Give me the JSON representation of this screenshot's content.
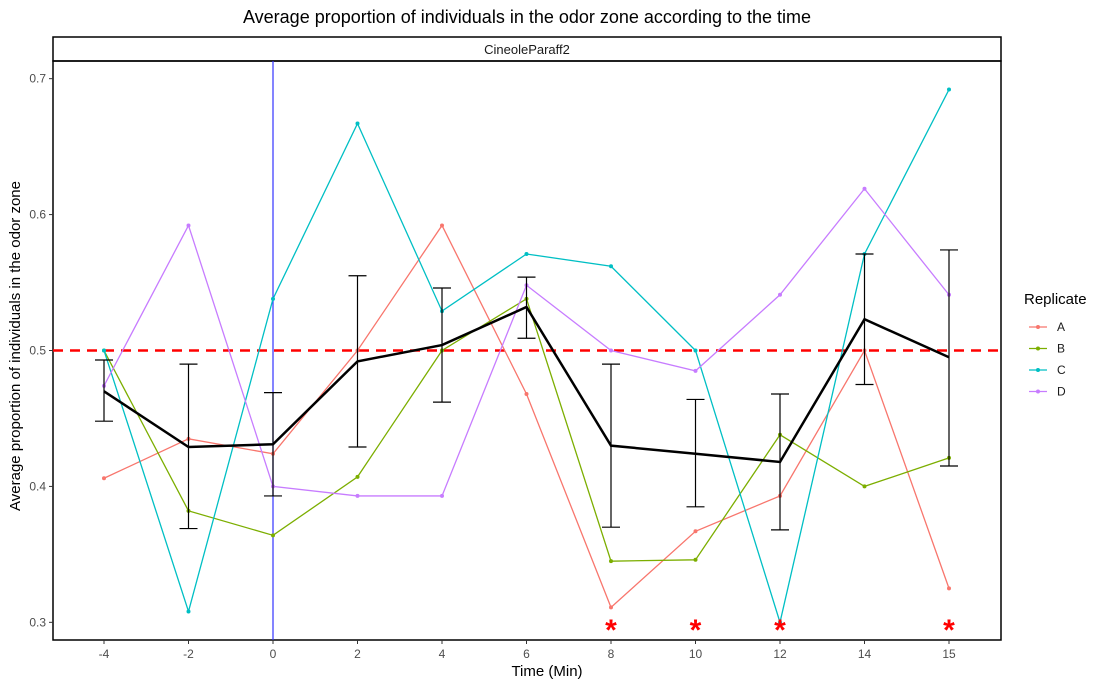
{
  "chart_data": {
    "type": "line",
    "title": "Average proportion of individuals in the odor zone according to the time",
    "facet_label": "CineoleParaff2",
    "xlabel": "Time (Min)",
    "ylabel": "Average proportion of individuals in the odor zone",
    "categories": [
      "-4",
      "-2",
      "0",
      "2",
      "4",
      "6",
      "8",
      "10",
      "12",
      "14",
      "15"
    ],
    "ylim": [
      0.287,
      0.713
    ],
    "yticks": [
      0.3,
      0.4,
      0.5,
      0.6,
      0.7
    ],
    "ytick_labels": [
      "0.3",
      "0.4",
      "0.5",
      "0.6",
      "0.7"
    ],
    "legend_title": "Replicate",
    "legend_position": "right",
    "series": [
      {
        "name": "A",
        "color": "#F8766D",
        "values": [
          0.406,
          0.435,
          0.424,
          0.5,
          0.592,
          0.468,
          0.311,
          0.367,
          0.393,
          0.5,
          0.325
        ]
      },
      {
        "name": "B",
        "color": "#7CAE00",
        "values": [
          0.5,
          0.382,
          0.364,
          0.407,
          0.5,
          0.538,
          0.345,
          0.346,
          0.438,
          0.4,
          0.421
        ]
      },
      {
        "name": "C",
        "color": "#00BFC4",
        "values": [
          0.5,
          0.308,
          0.538,
          0.667,
          0.529,
          0.571,
          0.562,
          0.5,
          0.3,
          0.571,
          0.692
        ]
      },
      {
        "name": "D",
        "color": "#C77CFF",
        "values": [
          0.474,
          0.592,
          0.4,
          0.393,
          0.393,
          0.548,
          0.5,
          0.485,
          0.541,
          0.619,
          0.541
        ]
      }
    ],
    "mean": {
      "color": "#000000",
      "values": [
        0.47,
        0.429,
        0.431,
        0.492,
        0.504,
        0.532,
        0.43,
        0.424,
        0.418,
        0.523,
        0.495
      ],
      "error_low": [
        0.448,
        0.369,
        0.393,
        0.429,
        0.462,
        0.509,
        0.37,
        0.385,
        0.368,
        0.475,
        0.415
      ],
      "error_high": [
        0.493,
        0.49,
        0.469,
        0.555,
        0.546,
        0.554,
        0.49,
        0.464,
        0.468,
        0.571,
        0.574
      ]
    },
    "reference_line": {
      "y": 0.5,
      "color": "#ff0000",
      "style": "dashed"
    },
    "vertical_line": {
      "x": "0",
      "color": "#3333ff"
    },
    "significance": {
      "marker": "*",
      "color": "#ff0000",
      "at": [
        "8",
        "10",
        "12",
        "15"
      ]
    },
    "grid": false
  }
}
